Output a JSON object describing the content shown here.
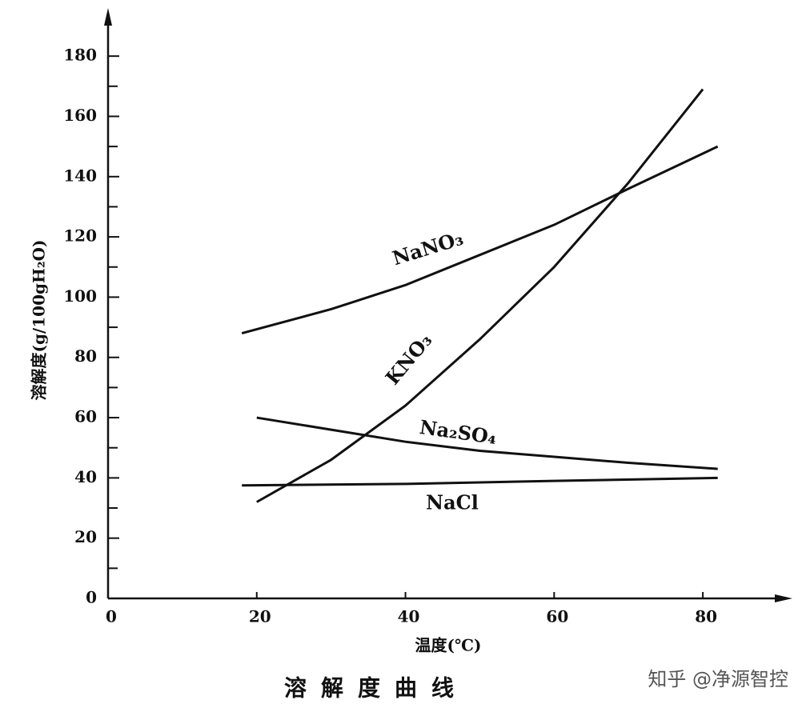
{
  "chart_data": {
    "type": "line",
    "title": "溶解度曲线",
    "x_label": "温度(℃)",
    "y_label": "溶解度(g/100gH₂O)",
    "watermark": "知乎 @净源智控",
    "color": "#111111",
    "xlim": [
      0,
      90
    ],
    "ylim": [
      0,
      190
    ],
    "xticks": [
      0,
      20,
      40,
      60,
      80
    ],
    "yticks": [
      0,
      20,
      40,
      60,
      80,
      100,
      120,
      140,
      160,
      180
    ],
    "yminor_ticks": [
      10,
      30,
      50,
      70,
      90,
      110,
      130,
      150,
      170
    ],
    "series": [
      {
        "name": "NaNO₃",
        "x": [
          18,
          30,
          40,
          50,
          60,
          70,
          82
        ],
        "values": [
          88,
          96,
          104,
          114,
          124,
          136,
          150
        ]
      },
      {
        "name": "KNO₃",
        "x": [
          20,
          30,
          40,
          50,
          60,
          70,
          80
        ],
        "values": [
          32,
          46,
          64,
          86,
          110,
          138,
          169
        ]
      },
      {
        "name": "Na₂SO₄",
        "x": [
          20,
          30,
          40,
          50,
          60,
          70,
          82
        ],
        "values": [
          60,
          56,
          52,
          49,
          47,
          45,
          43
        ]
      },
      {
        "name": "NaCl",
        "x": [
          18,
          40,
          60,
          82
        ],
        "values": [
          37.5,
          38,
          39,
          40
        ]
      }
    ]
  }
}
